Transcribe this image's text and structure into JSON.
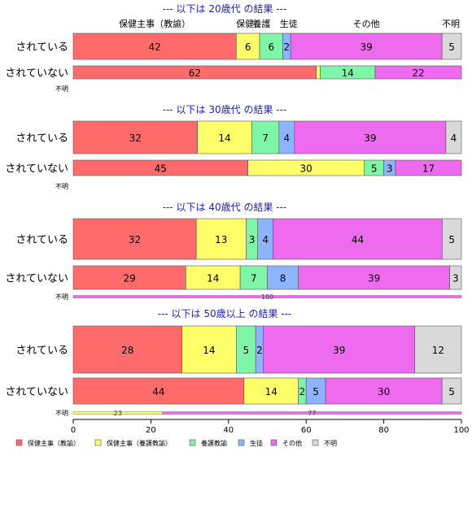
{
  "chart_data": {
    "type": "bar",
    "orientation": "horizontal",
    "stacked": "percent",
    "categories": [
      "保健主事（教諭）",
      "保健主事（養護教諭）",
      "養護教諭",
      "生徒",
      "その他",
      "不明"
    ],
    "colors": [
      "#ff6a6a",
      "#ffff6a",
      "#7ff5a8",
      "#8db4ff",
      "#ee6aee",
      "#d9d9d9"
    ],
    "header_labels": [
      "保健主事（教諭）",
      "保健..",
      "養護",
      "生徒",
      "その他",
      "不明"
    ],
    "xlim": [
      0,
      100
    ],
    "xticks": [
      "0",
      "20",
      "40",
      "60",
      "80",
      "100"
    ],
    "legend_position": "bottom",
    "groups": [
      {
        "title": "--- 以下は 20歳代 の結果 ---",
        "rows": [
          {
            "label": "されている",
            "values": [
              42,
              6,
              6,
              2,
              39,
              5
            ]
          },
          {
            "label": "されていない",
            "values": [
              62,
              1,
              14,
              0,
              22,
              0
            ]
          }
        ],
        "fumei_label": "不明",
        "fumei_values": []
      },
      {
        "title": "--- 以下は 30歳代 の結果 ---",
        "rows": [
          {
            "label": "されている",
            "values": [
              32,
              14,
              7,
              4,
              39,
              4
            ]
          },
          {
            "label": "されていない",
            "values": [
              45,
              30,
              5,
              3,
              17,
              0
            ]
          }
        ],
        "fumei_label": "不明",
        "fumei_values": []
      },
      {
        "title": "--- 以下は 40歳代 の結果 ---",
        "rows": [
          {
            "label": "されている",
            "values": [
              32,
              13,
              3,
              4,
              44,
              5
            ]
          },
          {
            "label": "されていない",
            "values": [
              29,
              14,
              7,
              8,
              39,
              3
            ]
          }
        ],
        "fumei_label": "不明",
        "fumei_values": [
          0,
          0,
          0,
          0,
          100,
          0
        ]
      },
      {
        "title": "--- 以下は 50歳以上 の結果 ---",
        "rows": [
          {
            "label": "されている",
            "values": [
              28,
              14,
              5,
              2,
              39,
              12
            ]
          },
          {
            "label": "されていない",
            "values": [
              44,
              14,
              2,
              5,
              30,
              5
            ]
          }
        ],
        "fumei_label": "不明",
        "fumei_values": [
          0,
          23,
          0,
          0,
          77,
          0
        ]
      }
    ]
  }
}
